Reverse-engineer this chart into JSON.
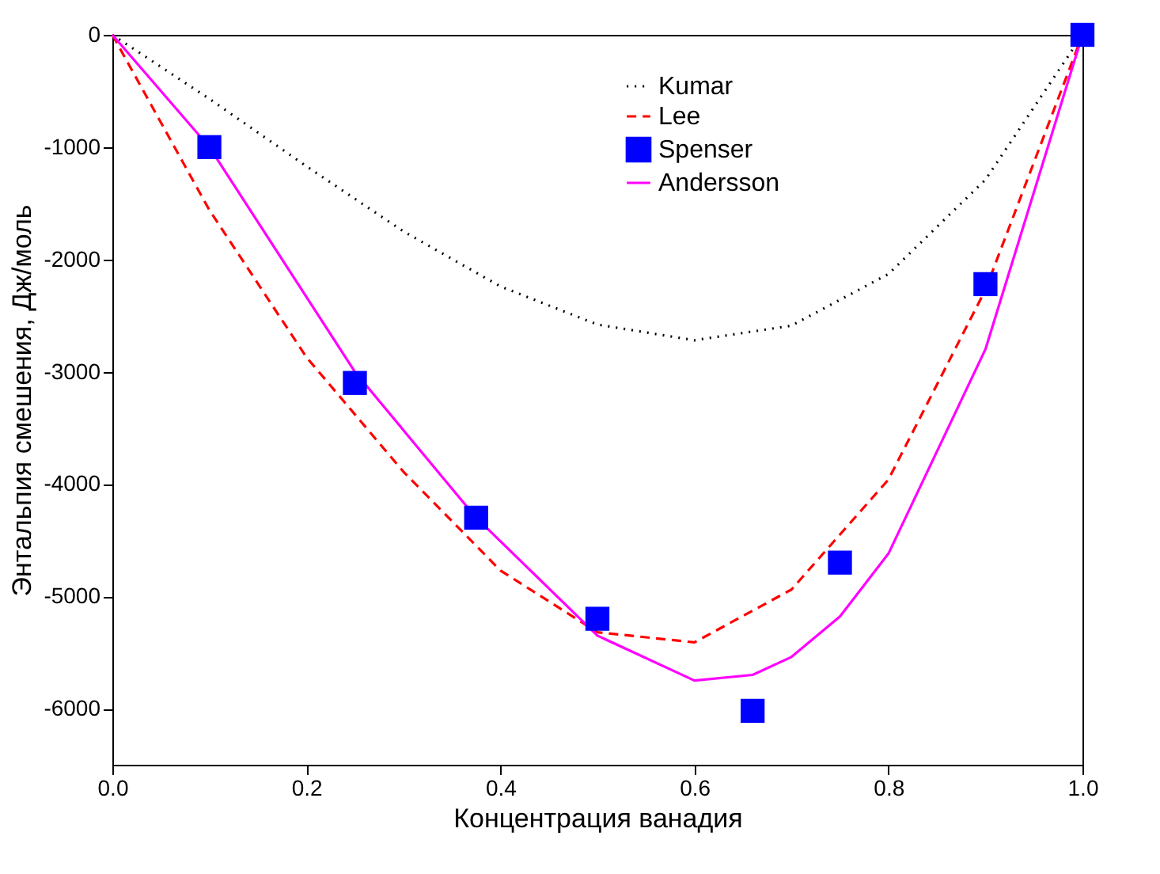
{
  "chart_data": {
    "type": "line",
    "xlabel": "Концентрация ванадия",
    "ylabel": "Энтальпия смешения, Дж/моль",
    "xlim": [
      0,
      1
    ],
    "xticks": [
      {
        "value": 0,
        "label": "0.0"
      },
      0.2,
      0.4,
      0.6,
      0.8,
      {
        "value": 1,
        "label": "1.0"
      }
    ],
    "ylim": [
      -6500,
      0
    ],
    "yticks": [
      -6000,
      -5000,
      -4000,
      -3000,
      -2000,
      -1000,
      0
    ],
    "grid": false,
    "legend": "top right",
    "series": [
      {
        "name": "Kumar",
        "line_style": "dotted",
        "color": "#000000",
        "x": [
          0,
          0.1,
          0.2,
          0.3,
          0.4,
          0.5,
          0.6,
          0.7,
          0.8,
          0.9,
          1
        ],
        "values": [
          0,
          -570,
          -1170,
          -1750,
          -2240,
          -2580,
          -2720,
          -2590,
          -2130,
          -1290,
          0
        ]
      },
      {
        "name": "Lee",
        "line_style": "dashed",
        "color": "#ff0000",
        "x": [
          0,
          0.1,
          0.2,
          0.3,
          0.4,
          0.5,
          0.6,
          0.7,
          0.8,
          0.9,
          1
        ],
        "values": [
          0,
          -1560,
          -2870,
          -3890,
          -4770,
          -5320,
          -5410,
          -4940,
          -3960,
          -2270,
          0
        ]
      },
      {
        "name": "Spenser",
        "type": "scatter",
        "marker": "square",
        "color": "#0000ff",
        "x": [
          0.1,
          0.25,
          0.375,
          0.5,
          0.66,
          0.75,
          0.9,
          1
        ],
        "values": [
          -1000,
          -3100,
          -4300,
          -5200,
          -6020,
          -4700,
          -2220,
          0
        ]
      },
      {
        "name": "Andersson",
        "line_style": "solid",
        "color": "#ff00ff",
        "x": [
          0,
          0.1,
          0.25,
          0.375,
          0.5,
          0.6,
          0.66,
          0.7,
          0.75,
          0.8,
          0.9,
          1
        ],
        "values": [
          0,
          -1000,
          -3000,
          -4300,
          -5350,
          -5750,
          -5700,
          -5540,
          -5180,
          -4620,
          -2800,
          0
        ]
      }
    ]
  }
}
